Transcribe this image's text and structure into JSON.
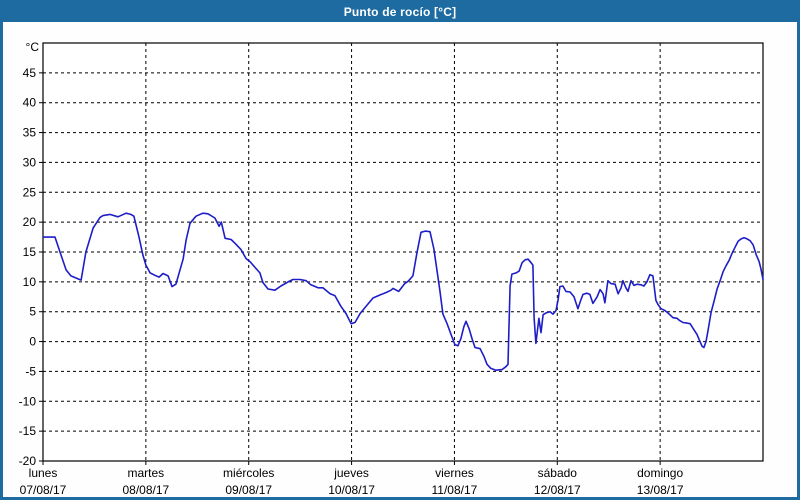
{
  "window": {
    "title": "Punto de rocío [°C]"
  },
  "colors": {
    "titlebar_bg": "#1d6ba1",
    "titlebar_text": "#ffffff",
    "window_border": "#1d6ba1",
    "window_bg": "#fdfefd",
    "plot_bg": "#ffffff",
    "grid": "#000000",
    "axis": "#000000",
    "tick_text": "#000000",
    "line": "#1e1ec8"
  },
  "chart_data": {
    "type": "line",
    "title": "Punto de rocío [°C]",
    "y_unit_label": "°C",
    "ylim": [
      -20,
      50
    ],
    "y_ticks": [
      45,
      40,
      35,
      30,
      25,
      20,
      15,
      10,
      5,
      0,
      -5,
      -10,
      -15,
      -20
    ],
    "grid": true,
    "legend": "none",
    "x_axis": {
      "total_hours": 168,
      "hours_per_day": 24,
      "days": [
        {
          "name": "lunes",
          "date": "07/08/17"
        },
        {
          "name": "martes",
          "date": "08/08/17"
        },
        {
          "name": "miércoles",
          "date": "09/08/17"
        },
        {
          "name": "jueves",
          "date": "10/08/17"
        },
        {
          "name": "viernes",
          "date": "11/08/17"
        },
        {
          "name": "sábado",
          "date": "12/08/17"
        },
        {
          "name": "domingo",
          "date": "13/08/17"
        }
      ]
    },
    "series": [
      {
        "name": "Punto de rocío",
        "color": "#1e1ec8",
        "points": [
          [
            0,
            17.5
          ],
          [
            2.8,
            17.5
          ],
          [
            4.2,
            14.5
          ],
          [
            5.4,
            12.0
          ],
          [
            6.5,
            11.0
          ],
          [
            8.2,
            10.5
          ],
          [
            8.9,
            10.3
          ],
          [
            10.0,
            15.0
          ],
          [
            11.7,
            19.0
          ],
          [
            13.3,
            20.8
          ],
          [
            14.0,
            21.1
          ],
          [
            15.6,
            21.3
          ],
          [
            17.5,
            20.9
          ],
          [
            19.4,
            21.5
          ],
          [
            20.5,
            21.3
          ],
          [
            21.2,
            21.0
          ],
          [
            22.4,
            17.5
          ],
          [
            23.3,
            14.5
          ],
          [
            24.0,
            12.8
          ],
          [
            25.0,
            11.5
          ],
          [
            26.1,
            11.1
          ],
          [
            27.1,
            10.8
          ],
          [
            28.0,
            11.4
          ],
          [
            29.2,
            11.0
          ],
          [
            30.1,
            9.2
          ],
          [
            31.0,
            9.6
          ],
          [
            32.7,
            13.8
          ],
          [
            33.4,
            17.0
          ],
          [
            34.3,
            19.8
          ],
          [
            35.7,
            21.0
          ],
          [
            37.3,
            21.5
          ],
          [
            38.5,
            21.4
          ],
          [
            40.1,
            20.7
          ],
          [
            41.1,
            19.3
          ],
          [
            41.6,
            20.0
          ],
          [
            42.5,
            17.3
          ],
          [
            43.9,
            17.1
          ],
          [
            45.0,
            16.3
          ],
          [
            46.2,
            15.4
          ],
          [
            47.4,
            13.9
          ],
          [
            48.3,
            13.4
          ],
          [
            49.5,
            12.4
          ],
          [
            50.6,
            11.5
          ],
          [
            51.3,
            9.9
          ],
          [
            52.5,
            8.8
          ],
          [
            54.1,
            8.6
          ],
          [
            55.5,
            9.3
          ],
          [
            57.2,
            10.0
          ],
          [
            58.3,
            10.4
          ],
          [
            60.0,
            10.4
          ],
          [
            61.4,
            10.2
          ],
          [
            62.5,
            9.5
          ],
          [
            64.2,
            9.0
          ],
          [
            65.3,
            9.0
          ],
          [
            67.0,
            8.0
          ],
          [
            68.1,
            7.7
          ],
          [
            69.5,
            5.9
          ],
          [
            70.7,
            4.7
          ],
          [
            71.9,
            3.0
          ],
          [
            72.8,
            3.2
          ],
          [
            74.0,
            4.7
          ],
          [
            75.4,
            5.9
          ],
          [
            77.0,
            7.3
          ],
          [
            78.6,
            7.8
          ],
          [
            80.0,
            8.2
          ],
          [
            81.2,
            8.6
          ],
          [
            81.7,
            8.9
          ],
          [
            83.0,
            8.4
          ],
          [
            84.4,
            9.7
          ],
          [
            85.2,
            10.1
          ],
          [
            86.3,
            11.0
          ],
          [
            87.3,
            15.0
          ],
          [
            88.2,
            18.3
          ],
          [
            89.2,
            18.5
          ],
          [
            90.3,
            18.4
          ],
          [
            91.2,
            15.5
          ],
          [
            91.9,
            12.0
          ],
          [
            92.6,
            8.5
          ],
          [
            93.3,
            4.6
          ],
          [
            94.3,
            3.0
          ],
          [
            95.2,
            1.2
          ],
          [
            96.1,
            -0.5
          ],
          [
            96.8,
            -0.7
          ],
          [
            97.5,
            0.5
          ],
          [
            98.2,
            2.5
          ],
          [
            98.7,
            3.4
          ],
          [
            99.4,
            2.2
          ],
          [
            100.1,
            0.5
          ],
          [
            100.8,
            -1.0
          ],
          [
            102.0,
            -1.2
          ],
          [
            102.9,
            -2.5
          ],
          [
            103.6,
            -3.8
          ],
          [
            104.5,
            -4.5
          ],
          [
            105.7,
            -4.8
          ],
          [
            107.1,
            -4.7
          ],
          [
            108.0,
            -4.2
          ],
          [
            108.5,
            -3.8
          ],
          [
            108.7,
            2.0
          ],
          [
            109.0,
            9.3
          ],
          [
            109.4,
            11.3
          ],
          [
            110.4,
            11.5
          ],
          [
            111.1,
            11.8
          ],
          [
            111.8,
            13.2
          ],
          [
            112.5,
            13.7
          ],
          [
            113.2,
            13.8
          ],
          [
            113.9,
            13.2
          ],
          [
            114.3,
            12.8
          ],
          [
            114.6,
            4.0
          ],
          [
            115.0,
            -0.3
          ],
          [
            115.7,
            3.9
          ],
          [
            116.2,
            1.5
          ],
          [
            116.7,
            4.5
          ],
          [
            117.4,
            4.8
          ],
          [
            118.3,
            5.0
          ],
          [
            119.0,
            4.6
          ],
          [
            119.7,
            5.2
          ],
          [
            120.2,
            7.0
          ],
          [
            120.6,
            9.2
          ],
          [
            121.3,
            9.3
          ],
          [
            122.0,
            8.4
          ],
          [
            123.0,
            8.3
          ],
          [
            123.9,
            7.5
          ],
          [
            124.8,
            5.5
          ],
          [
            125.5,
            7.0
          ],
          [
            126.0,
            7.9
          ],
          [
            126.9,
            8.1
          ],
          [
            127.6,
            7.9
          ],
          [
            128.3,
            6.4
          ],
          [
            129.3,
            7.5
          ],
          [
            130.0,
            8.7
          ],
          [
            130.7,
            8.0
          ],
          [
            131.1,
            6.5
          ],
          [
            131.8,
            10.2
          ],
          [
            132.5,
            9.7
          ],
          [
            133.5,
            9.6
          ],
          [
            134.2,
            8.0
          ],
          [
            134.9,
            9.0
          ],
          [
            135.3,
            10.2
          ],
          [
            136.0,
            9.0
          ],
          [
            136.5,
            8.4
          ],
          [
            137.2,
            10.2
          ],
          [
            137.9,
            9.4
          ],
          [
            138.6,
            9.6
          ],
          [
            139.5,
            9.5
          ],
          [
            140.2,
            9.3
          ],
          [
            140.9,
            10.0
          ],
          [
            141.6,
            11.2
          ],
          [
            142.3,
            11.0
          ],
          [
            143.0,
            6.9
          ],
          [
            143.5,
            6.2
          ],
          [
            144.2,
            5.5
          ],
          [
            145.1,
            5.2
          ],
          [
            145.8,
            4.8
          ],
          [
            147.0,
            4.0
          ],
          [
            147.9,
            3.9
          ],
          [
            148.6,
            3.5
          ],
          [
            149.3,
            3.2
          ],
          [
            150.3,
            3.1
          ],
          [
            151.0,
            3.0
          ],
          [
            151.7,
            2.2
          ],
          [
            152.6,
            1.2
          ],
          [
            153.3,
            0.0
          ],
          [
            153.8,
            -0.8
          ],
          [
            154.2,
            -1.0
          ],
          [
            154.7,
            0.0
          ],
          [
            155.2,
            1.9
          ],
          [
            155.9,
            4.9
          ],
          [
            156.6,
            6.8
          ],
          [
            157.3,
            8.8
          ],
          [
            158.0,
            10.2
          ],
          [
            158.7,
            11.7
          ],
          [
            159.4,
            12.7
          ],
          [
            160.1,
            13.6
          ],
          [
            160.8,
            14.8
          ],
          [
            161.5,
            15.8
          ],
          [
            162.2,
            16.8
          ],
          [
            162.9,
            17.2
          ],
          [
            163.6,
            17.4
          ],
          [
            164.3,
            17.2
          ],
          [
            165.0,
            16.9
          ],
          [
            165.7,
            16.2
          ],
          [
            166.4,
            14.6
          ],
          [
            167.1,
            13.4
          ],
          [
            167.5,
            12.2
          ],
          [
            168,
            10.4
          ]
        ]
      }
    ]
  }
}
